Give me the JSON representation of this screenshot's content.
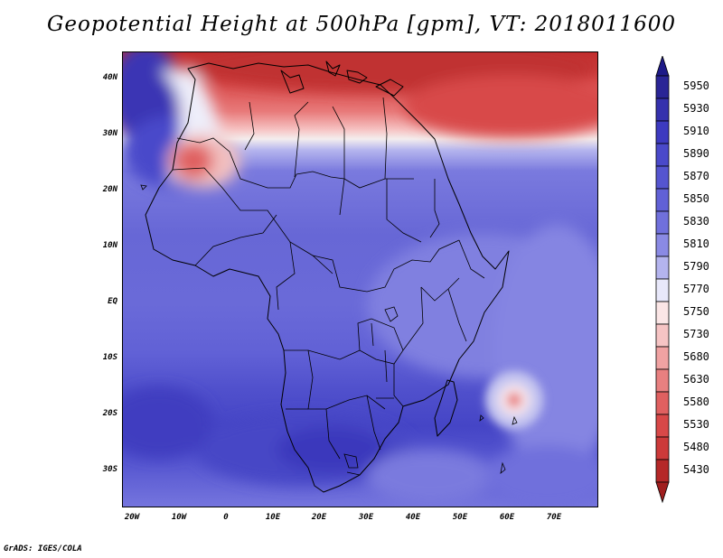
{
  "title": "Geopotential Height at 500hPa [gpm], VT: 2018011600",
  "credit": "GrADS: IGES/COLA",
  "map": {
    "variable": "Geopotential Height at 500hPa",
    "unit": "gpm",
    "valid_time": "2018011600",
    "lon_range": [
      -22,
      80
    ],
    "lat_range": [
      -37,
      45
    ],
    "lat_ticks": [
      {
        "value": 40,
        "label": "40N"
      },
      {
        "value": 30,
        "label": "30N"
      },
      {
        "value": 20,
        "label": "20N"
      },
      {
        "value": 10,
        "label": "10N"
      },
      {
        "value": 0,
        "label": "EQ"
      },
      {
        "value": -10,
        "label": "10S"
      },
      {
        "value": -20,
        "label": "20S"
      },
      {
        "value": -30,
        "label": "30S"
      }
    ],
    "lon_ticks": [
      {
        "value": -20,
        "label": "20W"
      },
      {
        "value": -10,
        "label": "10W"
      },
      {
        "value": 0,
        "label": "0"
      },
      {
        "value": 10,
        "label": "10E"
      },
      {
        "value": 20,
        "label": "20E"
      },
      {
        "value": 30,
        "label": "30E"
      },
      {
        "value": 40,
        "label": "40E"
      },
      {
        "value": 50,
        "label": "50E"
      },
      {
        "value": 60,
        "label": "60E"
      },
      {
        "value": 70,
        "label": "70E"
      }
    ]
  },
  "colorbar": {
    "labels": [
      "5950",
      "5930",
      "5910",
      "5890",
      "5870",
      "5850",
      "5830",
      "5810",
      "5790",
      "5770",
      "5750",
      "5730",
      "5680",
      "5630",
      "5580",
      "5530",
      "5480",
      "5430"
    ],
    "colors": [
      "#2a2596",
      "#3531ad",
      "#3d3ac0",
      "#4a49ca",
      "#5555d0",
      "#6161d6",
      "#7070dc",
      "#8a8ae4",
      "#b4b4ee",
      "#e8e8fa",
      "#fbe6e6",
      "#f6c4c4",
      "#f0a2a2",
      "#e88080",
      "#e06060",
      "#d84848",
      "#cc3a3a",
      "#b52828"
    ],
    "triangle_top_color": "#1e1a88",
    "triangle_bottom_color": "#a01e1e"
  }
}
